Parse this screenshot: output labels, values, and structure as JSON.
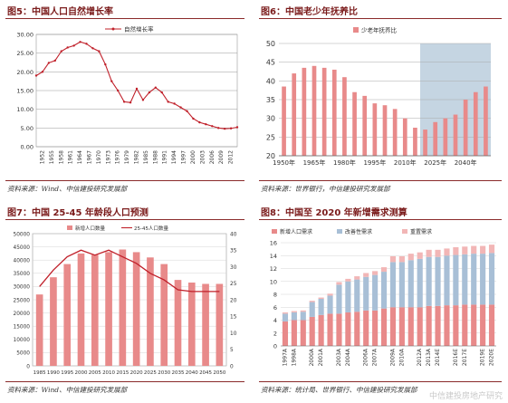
{
  "colors": {
    "title": "#7a1a1a",
    "line": "#c0202a",
    "bar": "#e88a8a",
    "bar_light": "#f2b6b6",
    "bar_blue": "#a8bfd6",
    "shade": "#c5d5e2"
  },
  "panels": [
    {
      "title": "图5：中国人口自然增长率",
      "source": "资料来源：Wind、中信建投研究发展部"
    },
    {
      "title": "图6：中国老少年抚养比",
      "source": "资料来源：世界银行，中信建投研究发展部"
    },
    {
      "title": "图7：中国 25-45 年龄段人口预测",
      "source": "资料来源：Wind、中信建投研究发展部"
    },
    {
      "title": "图8：中国至 2020 年新增需求测算",
      "source": "资料来源：统计局、世界银行、中信建投研究发展部"
    }
  ],
  "watermark": "中信建投房地产研究",
  "chart_data": [
    {
      "type": "line",
      "title": "",
      "legend": [
        "自然增长率"
      ],
      "xlabel": "",
      "ylabel": "",
      "ylim": [
        0,
        30
      ],
      "y_ticks": [
        "0.00",
        "5.00",
        "10.00",
        "15.00",
        "20.00",
        "25.00",
        "30.00"
      ],
      "x_ticks": [
        "1952",
        "1955",
        "1958",
        "1961",
        "1964",
        "1967",
        "1970",
        "1973",
        "1976",
        "1979",
        "1982",
        "1985",
        "1988",
        "1991",
        "1994",
        "1997",
        "2000",
        "2003",
        "2006",
        "2009",
        "2012"
      ],
      "series": [
        {
          "name": "自然增长率",
          "x": [
            1950,
            1952,
            1954,
            1956,
            1958,
            1960,
            1962,
            1964,
            1966,
            1968,
            1970,
            1972,
            1974,
            1976,
            1978,
            1980,
            1982,
            1984,
            1986,
            1988,
            1990,
            1992,
            1994,
            1996,
            1998,
            2000,
            2002,
            2004,
            2006,
            2008,
            2010,
            2012,
            2014
          ],
          "values": [
            19,
            20,
            22.4,
            23,
            25.5,
            26.5,
            27,
            28,
            27.5,
            26.3,
            25.5,
            22,
            17.5,
            15,
            12,
            11.8,
            15.5,
            12.5,
            14.5,
            15.8,
            14.5,
            12,
            11.5,
            10.5,
            9.5,
            7.5,
            6.5,
            6,
            5.5,
            5,
            4.8,
            4.9,
            5.2
          ]
        }
      ]
    },
    {
      "type": "bar",
      "title": "",
      "legend": [
        "少老年抚养比"
      ],
      "ylim": [
        20,
        50
      ],
      "y_ticks": [
        "20",
        "25",
        "30",
        "35",
        "40",
        "45",
        "50"
      ],
      "x_ticks": [
        "1950年",
        "1965年",
        "1980年",
        "1995年",
        "2010年",
        "2025年",
        "2040年"
      ],
      "x": [
        1950,
        1955,
        1960,
        1965,
        1970,
        1975,
        1980,
        1985,
        1990,
        1995,
        2000,
        2005,
        2010,
        2015,
        2020,
        2025,
        2030,
        2035,
        2040,
        2045,
        2050
      ],
      "values": [
        38.5,
        42,
        43.5,
        44,
        43.5,
        43,
        41,
        37,
        36,
        34,
        33.5,
        32.5,
        30,
        27.5,
        27,
        29,
        30,
        31,
        35,
        37,
        38.5
      ],
      "shaded_region": {
        "from": 2020,
        "to": 2050
      }
    },
    {
      "type": "bar+line",
      "title": "",
      "legend": [
        "新增人口数量",
        "25-45人口数量"
      ],
      "ylim_left": [
        0,
        50000
      ],
      "ylim_right": [
        0,
        40
      ],
      "y_ticks_left": [
        "0",
        "5000",
        "10000",
        "15000",
        "20000",
        "25000",
        "30000",
        "35000",
        "40000",
        "45000",
        "50000"
      ],
      "y_ticks_right": [
        "0",
        "5",
        "10",
        "15",
        "20",
        "25",
        "30",
        "35",
        "40"
      ],
      "x_ticks": [
        "1985",
        "1990",
        "1995",
        "2000",
        "2005",
        "2010",
        "2015",
        "2020",
        "2025",
        "2030",
        "2035",
        "2040",
        "2045",
        "2050"
      ],
      "series": [
        {
          "name": "新增人口数量",
          "values": [
            27000,
            33500,
            38500,
            42500,
            42000,
            43000,
            44000,
            43000,
            41000,
            38500,
            32500,
            31500,
            31000,
            31000
          ]
        },
        {
          "name": "25-45人口数量",
          "values": [
            24,
            29,
            33,
            35,
            33.5,
            35,
            33,
            31,
            28,
            26,
            23,
            22.5,
            22.5,
            22.5
          ]
        }
      ]
    },
    {
      "type": "stacked_bar",
      "title": "",
      "legend": [
        "新增人口需求",
        "改善性需求",
        "重置需求"
      ],
      "ylim": [
        0,
        16
      ],
      "y_ticks": [
        "0",
        "2",
        "4",
        "6",
        "8",
        "10",
        "12",
        "14",
        "16"
      ],
      "categories": [
        "1997A",
        "1998A",
        "1999A",
        "2000A",
        "2001A",
        "2002A",
        "2003A",
        "2004A",
        "2005A",
        "2006A",
        "2007A",
        "2008A",
        "2009A",
        "2010A",
        "2011A",
        "2012A",
        "2013A",
        "2014E",
        "2015E",
        "2016E",
        "2017E",
        "2018E",
        "2019E",
        "2020E"
      ],
      "x_ticks": [
        "1997A",
        "1998A",
        "2000A",
        "2001A",
        "2003A",
        "2004A",
        "2006A",
        "2007A",
        "2009A",
        "2010A",
        "2012A",
        "2013A",
        "2014E",
        "2016E",
        "2017E",
        "2019E",
        "2020E"
      ],
      "series": [
        {
          "name": "新增人口需求",
          "values": [
            3.8,
            4,
            4,
            4.5,
            4.8,
            5,
            5,
            5.2,
            5.3,
            5.5,
            5.5,
            5.8,
            6,
            6,
            6,
            6,
            6.2,
            6.2,
            6.3,
            6.3,
            6.4,
            6.4,
            6.4,
            6.4
          ]
        },
        {
          "name": "改善性需求",
          "values": [
            1.2,
            1.2,
            1.3,
            2.3,
            2.5,
            2.8,
            4.5,
            4.8,
            5,
            5.2,
            5.5,
            5.7,
            7,
            7,
            7.3,
            7.5,
            7.6,
            7.6,
            7.7,
            7.8,
            7.8,
            7.9,
            7.9,
            8
          ]
        },
        {
          "name": "重置需求",
          "values": [
            0.2,
            0.2,
            0.2,
            0.2,
            0.2,
            0.3,
            0.4,
            0.4,
            0.5,
            0.6,
            0.6,
            0.7,
            0.9,
            0.9,
            1,
            1,
            1.1,
            1.1,
            1.1,
            1.2,
            1.2,
            1.2,
            1.2,
            1.3
          ]
        }
      ]
    }
  ]
}
